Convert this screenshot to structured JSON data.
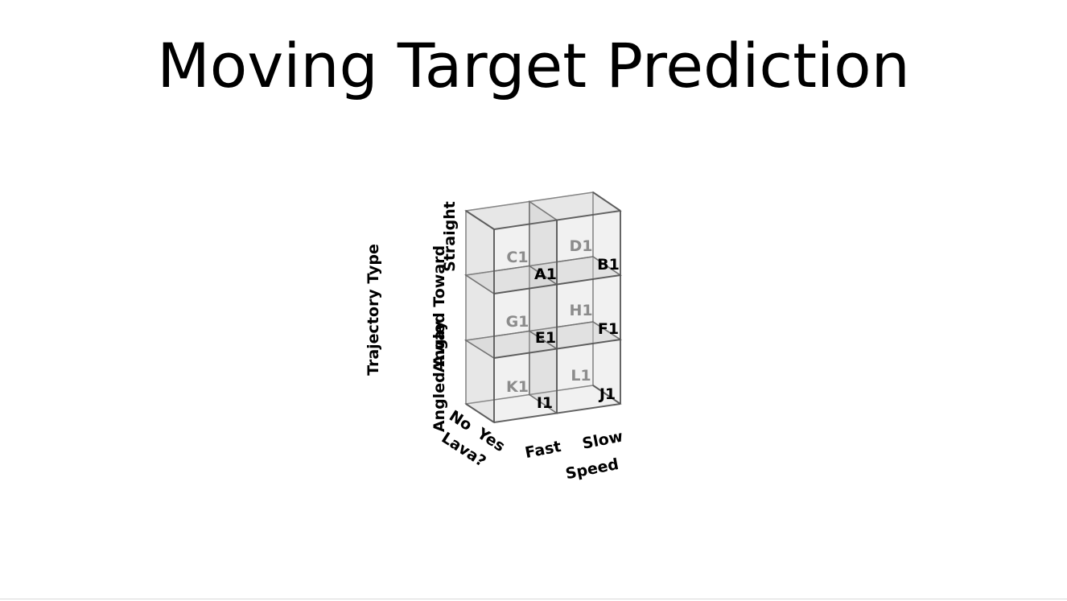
{
  "title": "Moving Target Prediction",
  "axes": {
    "vertical": {
      "label": "Trajectory Type",
      "ticks": [
        "Straight",
        "Angled Toward",
        "Angled Away"
      ]
    },
    "depth": {
      "label": "Lava?",
      "ticks": [
        "No",
        "Yes"
      ]
    },
    "horizontal": {
      "label": "Speed",
      "ticks": [
        "Fast",
        "Slow"
      ]
    }
  },
  "cells": {
    "front": [
      {
        "label": "A1",
        "trajectory": "Straight",
        "speed": "Fast",
        "lava": "Yes"
      },
      {
        "label": "B1",
        "trajectory": "Straight",
        "speed": "Slow",
        "lava": "Yes"
      },
      {
        "label": "E1",
        "trajectory": "Angled Toward",
        "speed": "Fast",
        "lava": "Yes"
      },
      {
        "label": "F1",
        "trajectory": "Angled Toward",
        "speed": "Slow",
        "lava": "Yes"
      },
      {
        "label": "I1",
        "trajectory": "Angled Away",
        "speed": "Fast",
        "lava": "Yes"
      },
      {
        "label": "J1",
        "trajectory": "Angled Away",
        "speed": "Slow",
        "lava": "Yes"
      }
    ],
    "back": [
      {
        "label": "C1",
        "trajectory": "Straight",
        "speed": "Fast",
        "lava": "No"
      },
      {
        "label": "D1",
        "trajectory": "Straight",
        "speed": "Slow",
        "lava": "No"
      },
      {
        "label": "G1",
        "trajectory": "Angled Toward",
        "speed": "Fast",
        "lava": "No"
      },
      {
        "label": "H1",
        "trajectory": "Angled Toward",
        "speed": "Slow",
        "lava": "No"
      },
      {
        "label": "K1",
        "trajectory": "Angled Away",
        "speed": "Fast",
        "lava": "No"
      },
      {
        "label": "L1",
        "trajectory": "Angled Away",
        "speed": "Slow",
        "lava": "No"
      }
    ]
  },
  "colors": {
    "box_fill": "#d3d3d3",
    "box_stroke": "#666666",
    "front_label": "#000000",
    "back_label": "#8c8c8c"
  }
}
